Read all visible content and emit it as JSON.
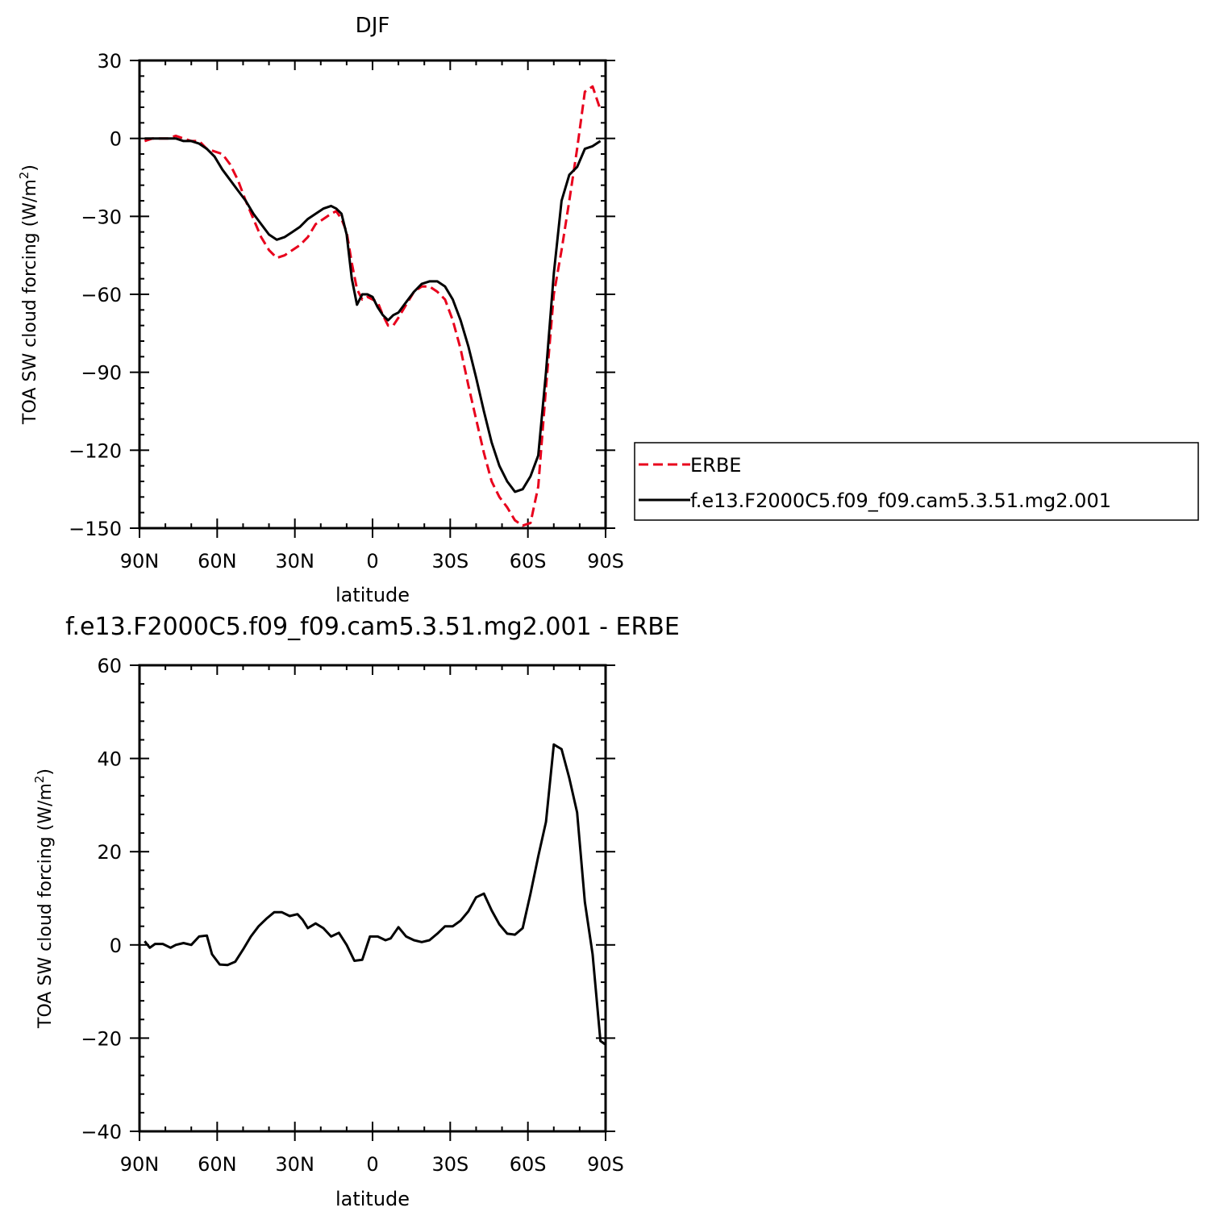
{
  "chart_data": [
    {
      "type": "line",
      "title": "DJF",
      "xlabel": "latitude",
      "ylabel_main": "TOA SW cloud forcing (W/m",
      "ylabel_sup": "2",
      "ylabel_close": ")",
      "xlim": [
        90,
        -90
      ],
      "ylim": [
        -150,
        30
      ],
      "xticks": [
        {
          "value": 90,
          "label": "90N"
        },
        {
          "value": 60,
          "label": "60N"
        },
        {
          "value": 30,
          "label": "30N"
        },
        {
          "value": 0,
          "label": "0"
        },
        {
          "value": -30,
          "label": "30S"
        },
        {
          "value": -60,
          "label": "60S"
        },
        {
          "value": -90,
          "label": "90S"
        }
      ],
      "yticks": [
        30,
        0,
        -30,
        -60,
        -90,
        -120,
        -150
      ],
      "grid": false,
      "legend": {
        "placement": "right",
        "entries": [
          "ERBE",
          "f.e13.F2000C5.f09_f09.cam5.3.51.mg2.001"
        ]
      },
      "series": [
        {
          "name": "ERBE",
          "color": "#e8001c",
          "dash": "dashed",
          "points": [
            [
              88,
              -1
            ],
            [
              85,
              0
            ],
            [
              82,
              0
            ],
            [
              79,
              0
            ],
            [
              76,
              1
            ],
            [
              73,
              0
            ],
            [
              70,
              -1
            ],
            [
              67,
              -1
            ],
            [
              64,
              -4
            ],
            [
              61,
              -5
            ],
            [
              58,
              -6
            ],
            [
              55,
              -10
            ],
            [
              52,
              -16
            ],
            [
              49,
              -24
            ],
            [
              46,
              -31
            ],
            [
              43,
              -38
            ],
            [
              40,
              -43
            ],
            [
              37,
              -46
            ],
            [
              34,
              -45
            ],
            [
              31,
              -43
            ],
            [
              28,
              -41
            ],
            [
              25,
              -38
            ],
            [
              22,
              -33
            ],
            [
              19,
              -31
            ],
            [
              16,
              -29
            ],
            [
              14,
              -28
            ],
            [
              12,
              -31
            ],
            [
              10,
              -36
            ],
            [
              8,
              -48
            ],
            [
              6,
              -58
            ],
            [
              4,
              -62
            ],
            [
              2,
              -61
            ],
            [
              0,
              -62
            ],
            [
              -2,
              -63
            ],
            [
              -4,
              -68
            ],
            [
              -6,
              -72
            ],
            [
              -8,
              -72
            ],
            [
              -10,
              -69
            ],
            [
              -13,
              -64
            ],
            [
              -16,
              -59
            ],
            [
              -19,
              -57
            ],
            [
              -22,
              -57
            ],
            [
              -25,
              -59
            ],
            [
              -28,
              -62
            ],
            [
              -31,
              -70
            ],
            [
              -34,
              -81
            ],
            [
              -37,
              -95
            ],
            [
              -40,
              -108
            ],
            [
              -43,
              -121
            ],
            [
              -46,
              -132
            ],
            [
              -49,
              -138
            ],
            [
              -52,
              -142
            ],
            [
              -55,
              -147
            ],
            [
              -58,
              -149
            ],
            [
              -61,
              -148
            ],
            [
              -64,
              -134
            ],
            [
              -67,
              -96
            ],
            [
              -70,
              -60
            ],
            [
              -73,
              -43
            ],
            [
              -76,
              -24
            ],
            [
              -79,
              -4
            ],
            [
              -82,
              18
            ],
            [
              -85,
              20
            ],
            [
              -88,
              11
            ]
          ]
        },
        {
          "name": "f.e13.F2000C5.f09_f09.cam5.3.51.mg2.001",
          "color": "#000000",
          "dash": "solid",
          "points": [
            [
              88,
              0
            ],
            [
              85,
              0
            ],
            [
              82,
              0
            ],
            [
              79,
              0
            ],
            [
              76,
              0
            ],
            [
              73,
              -1
            ],
            [
              70,
              -1
            ],
            [
              67,
              -2
            ],
            [
              64,
              -4
            ],
            [
              61,
              -7
            ],
            [
              58,
              -12
            ],
            [
              55,
              -16
            ],
            [
              52,
              -20
            ],
            [
              49,
              -24
            ],
            [
              46,
              -29
            ],
            [
              43,
              -33
            ],
            [
              40,
              -37
            ],
            [
              37,
              -39
            ],
            [
              34,
              -38
            ],
            [
              31,
              -36
            ],
            [
              28,
              -34
            ],
            [
              25,
              -31
            ],
            [
              22,
              -29
            ],
            [
              19,
              -27
            ],
            [
              16,
              -26
            ],
            [
              14,
              -27
            ],
            [
              12,
              -29
            ],
            [
              10,
              -37
            ],
            [
              8,
              -54
            ],
            [
              6,
              -64
            ],
            [
              4,
              -60
            ],
            [
              2,
              -60
            ],
            [
              0,
              -61
            ],
            [
              -2,
              -65
            ],
            [
              -4,
              -68
            ],
            [
              -6,
              -70
            ],
            [
              -8,
              -68
            ],
            [
              -10,
              -67
            ],
            [
              -13,
              -63
            ],
            [
              -16,
              -59
            ],
            [
              -19,
              -56
            ],
            [
              -22,
              -55
            ],
            [
              -25,
              -55
            ],
            [
              -28,
              -57
            ],
            [
              -31,
              -62
            ],
            [
              -34,
              -70
            ],
            [
              -37,
              -80
            ],
            [
              -40,
              -92
            ],
            [
              -43,
              -105
            ],
            [
              -46,
              -117
            ],
            [
              -49,
              -126
            ],
            [
              -52,
              -132
            ],
            [
              -55,
              -136
            ],
            [
              -58,
              -135
            ],
            [
              -61,
              -130
            ],
            [
              -64,
              -122
            ],
            [
              -67,
              -90
            ],
            [
              -70,
              -52
            ],
            [
              -73,
              -24
            ],
            [
              -76,
              -14
            ],
            [
              -79,
              -11
            ],
            [
              -82,
              -4
            ],
            [
              -85,
              -3
            ],
            [
              -88,
              -1
            ]
          ]
        }
      ]
    },
    {
      "type": "line",
      "title": "f.e13.F2000C5.f09_f09.cam5.3.51.mg2.001  -  ERBE",
      "xlabel": "latitude",
      "ylabel_main": "TOA SW cloud forcing (W/m",
      "ylabel_sup": "2",
      "ylabel_close": ")",
      "xlim": [
        90,
        -90
      ],
      "ylim": [
        -40,
        60
      ],
      "xticks": [
        {
          "value": 90,
          "label": "90N"
        },
        {
          "value": 60,
          "label": "60N"
        },
        {
          "value": 30,
          "label": "30N"
        },
        {
          "value": 0,
          "label": "0"
        },
        {
          "value": -30,
          "label": "30S"
        },
        {
          "value": -60,
          "label": "60S"
        },
        {
          "value": -90,
          "label": "90S"
        }
      ],
      "yticks": [
        60,
        40,
        20,
        0,
        -20,
        -40
      ],
      "grid": false,
      "series": [
        {
          "color": "#000000",
          "dash": "solid",
          "points": [
            [
              88,
              0.8
            ],
            [
              86,
              -0.6
            ],
            [
              84,
              0.2
            ],
            [
              81,
              0.2
            ],
            [
              78,
              -0.6
            ],
            [
              76,
              0
            ],
            [
              73,
              0.4
            ],
            [
              70,
              0
            ],
            [
              67,
              1.8
            ],
            [
              64,
              2
            ],
            [
              62,
              -2
            ],
            [
              59,
              -4.2
            ],
            [
              56,
              -4.3
            ],
            [
              53,
              -3.6
            ],
            [
              50,
              -1
            ],
            [
              47,
              1.8
            ],
            [
              44,
              4
            ],
            [
              41,
              5.6
            ],
            [
              38,
              7
            ],
            [
              35,
              7
            ],
            [
              32,
              6.2
            ],
            [
              29,
              6.6
            ],
            [
              27,
              5.4
            ],
            [
              25,
              3.6
            ],
            [
              22,
              4.6
            ],
            [
              19,
              3.6
            ],
            [
              16,
              1.8
            ],
            [
              13,
              2.6
            ],
            [
              10,
              0
            ],
            [
              7,
              -3.4
            ],
            [
              4,
              -3.2
            ],
            [
              1,
              1.8
            ],
            [
              -2,
              1.8
            ],
            [
              -5,
              1
            ],
            [
              -7,
              1.4
            ],
            [
              -10,
              3.8
            ],
            [
              -13,
              1.8
            ],
            [
              -16,
              1
            ],
            [
              -19,
              0.6
            ],
            [
              -22,
              1
            ],
            [
              -25,
              2.4
            ],
            [
              -28,
              4
            ],
            [
              -31,
              4
            ],
            [
              -34,
              5.2
            ],
            [
              -37,
              7.2
            ],
            [
              -40,
              10.2
            ],
            [
              -43,
              11
            ],
            [
              -46,
              7.4
            ],
            [
              -49,
              4.4
            ],
            [
              -52,
              2.4
            ],
            [
              -55,
              2.2
            ],
            [
              -58,
              3.6
            ],
            [
              -61,
              11
            ],
            [
              -64,
              19
            ],
            [
              -67,
              26.4
            ],
            [
              -70,
              43
            ],
            [
              -73,
              42
            ],
            [
              -76,
              35.8
            ],
            [
              -79,
              28.4
            ],
            [
              -82,
              9.2
            ],
            [
              -85,
              -2
            ],
            [
              -88,
              -20.6
            ],
            [
              -90,
              -21.4
            ],
            [
              -92,
              -13
            ]
          ]
        }
      ]
    }
  ]
}
